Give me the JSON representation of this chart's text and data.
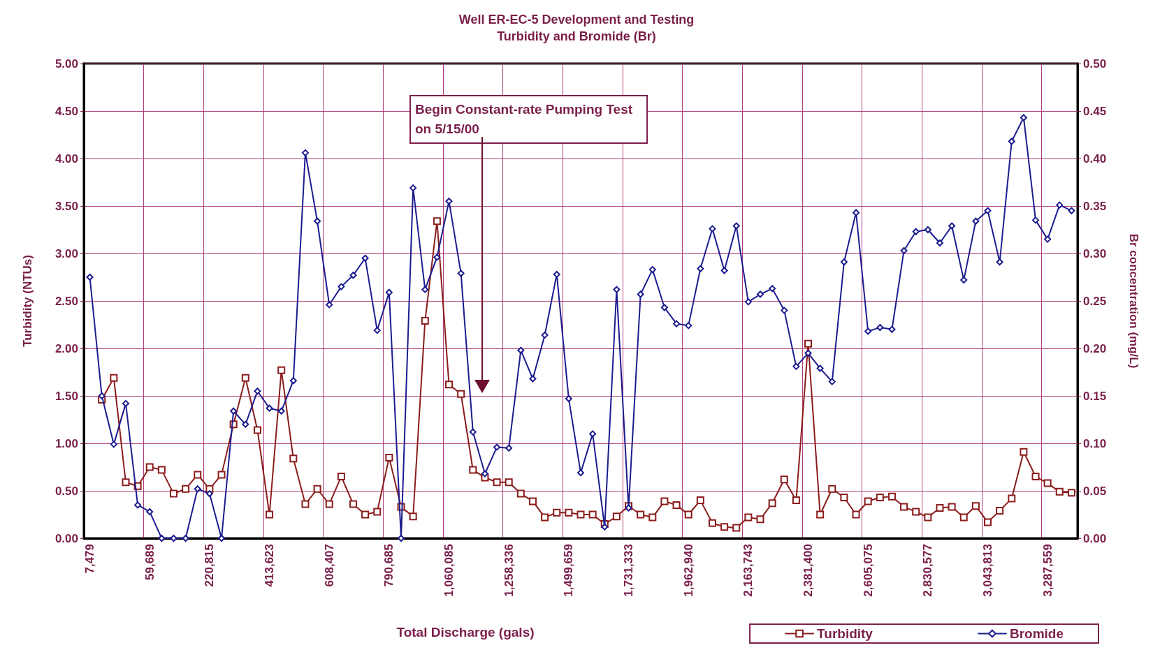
{
  "chart_data": {
    "type": "line",
    "title": "Well ER-EC-5 Development and Testing",
    "subtitle": "Turbidity and Bromide (Br)",
    "xlabel": "Total Discharge (gals)",
    "ylabel": "Turbidity (NTUs)",
    "y2label": "Br concentration (mg/L)",
    "annotations": [
      "Begin Constant-rate Pumping Test\non 5/15/00"
    ],
    "categories": [
      "7,479",
      null,
      null,
      null,
      null,
      "59,689",
      null,
      null,
      null,
      null,
      "220,815",
      null,
      null,
      null,
      null,
      "413,623",
      null,
      null,
      null,
      null,
      "608,407",
      null,
      null,
      null,
      null,
      "790,685",
      null,
      null,
      null,
      null,
      "1,060,085",
      null,
      null,
      null,
      null,
      "1,258,336",
      null,
      null,
      null,
      null,
      "1,499,659",
      null,
      null,
      null,
      null,
      "1,731,333",
      null,
      null,
      null,
      null,
      "1,962,940",
      null,
      null,
      null,
      null,
      "2,163,743",
      null,
      null,
      null,
      null,
      "2,381,400",
      null,
      null,
      null,
      null,
      "2,605,075",
      null,
      null,
      null,
      null,
      "2,830,577",
      null,
      null,
      null,
      null,
      "3,043,813",
      null,
      null,
      null,
      null,
      "3,287,559",
      null,
      null
    ],
    "series": [
      {
        "name": "Turbidity",
        "color": "#8b1c1c",
        "marker": "square",
        "values": [
          null,
          1.46,
          1.69,
          0.59,
          0.55,
          0.75,
          0.72,
          0.47,
          0.52,
          0.67,
          0.52,
          0.67,
          1.2,
          1.69,
          1.14,
          0.25,
          1.77,
          0.84,
          0.36,
          0.52,
          0.36,
          0.65,
          0.36,
          0.25,
          0.28,
          0.85,
          0.33,
          0.23,
          2.29,
          3.34,
          1.62,
          1.52,
          0.72,
          0.64,
          0.59,
          0.59,
          0.47,
          0.39,
          0.22,
          0.27,
          0.27,
          0.25,
          0.25,
          0.15,
          0.23,
          0.34,
          0.25,
          0.22,
          0.39,
          0.35,
          0.25,
          0.4,
          0.16,
          0.12,
          0.11,
          0.22,
          0.2,
          0.37,
          0.62,
          0.4,
          2.05,
          0.25,
          0.52,
          0.43,
          0.25,
          0.39,
          0.43,
          0.44,
          0.33,
          0.28,
          0.22,
          0.32,
          0.33,
          0.22,
          0.34,
          0.17,
          0.29,
          0.42,
          0.91,
          0.65,
          0.58,
          0.49,
          0.48
        ]
      },
      {
        "name": "Bromide",
        "color": "#1c1c8f",
        "marker": "diamond",
        "axis": "y2",
        "values": [
          0.275,
          0.15,
          0.099,
          0.142,
          0.035,
          0.028,
          0,
          0,
          0,
          0.052,
          0.047,
          0,
          0.134,
          0.12,
          0.155,
          0.137,
          0.134,
          0.166,
          0.406,
          0.334,
          0.246,
          0.265,
          0.277,
          0.295,
          0.219,
          0.259,
          0,
          0.369,
          0.262,
          0.296,
          0.355,
          0.279,
          0.112,
          0.068,
          0.096,
          0.095,
          0.198,
          0.168,
          0.214,
          0.278,
          0.147,
          0.069,
          0.11,
          0.012,
          0.262,
          0.032,
          0.257,
          0.283,
          0.243,
          0.226,
          0.224,
          0.284,
          0.326,
          0.282,
          0.329,
          0.249,
          0.257,
          0.263,
          0.24,
          0.181,
          0.195,
          0.179,
          0.165,
          0.291,
          0.343,
          0.218,
          0.222,
          0.22,
          0.303,
          0.323,
          0.325,
          0.311,
          0.329,
          0.272,
          0.334,
          0.345,
          0.291,
          0.418,
          0.443,
          0.335,
          0.315,
          0.351,
          0.345
        ]
      }
    ],
    "ylim": [
      0,
      5
    ],
    "yticks": [
      {
        "value": 0,
        "label": "0.00"
      },
      {
        "value": 0.5,
        "label": "0.50"
      },
      {
        "value": 1,
        "label": "1.00"
      },
      {
        "value": 1.5,
        "label": "1.50"
      },
      {
        "value": 2,
        "label": "2.00"
      },
      {
        "value": 2.5,
        "label": "2.50"
      },
      {
        "value": 3,
        "label": "3.00"
      },
      {
        "value": 3.5,
        "label": "3.50"
      },
      {
        "value": 4,
        "label": "4.00"
      },
      {
        "value": 4.5,
        "label": "4.50"
      },
      {
        "value": 5,
        "label": "5.00"
      }
    ],
    "y2lim": [
      0,
      0.5
    ],
    "y2ticks": [
      {
        "value": 0,
        "label": "0.00"
      },
      {
        "value": 0.05,
        "label": "0.05"
      },
      {
        "value": 0.1,
        "label": "0.10"
      },
      {
        "value": 0.15,
        "label": "0.15"
      },
      {
        "value": 0.2,
        "label": "0.20"
      },
      {
        "value": 0.25,
        "label": "0.25"
      },
      {
        "value": 0.3,
        "label": "0.30"
      },
      {
        "value": 0.35,
        "label": "0.35"
      },
      {
        "value": 0.4,
        "label": "0.40"
      },
      {
        "value": 0.45,
        "label": "0.45"
      },
      {
        "value": 0.5,
        "label": "0.50"
      }
    ],
    "grid": true,
    "legend": "bottom right",
    "line_style": "solid"
  }
}
